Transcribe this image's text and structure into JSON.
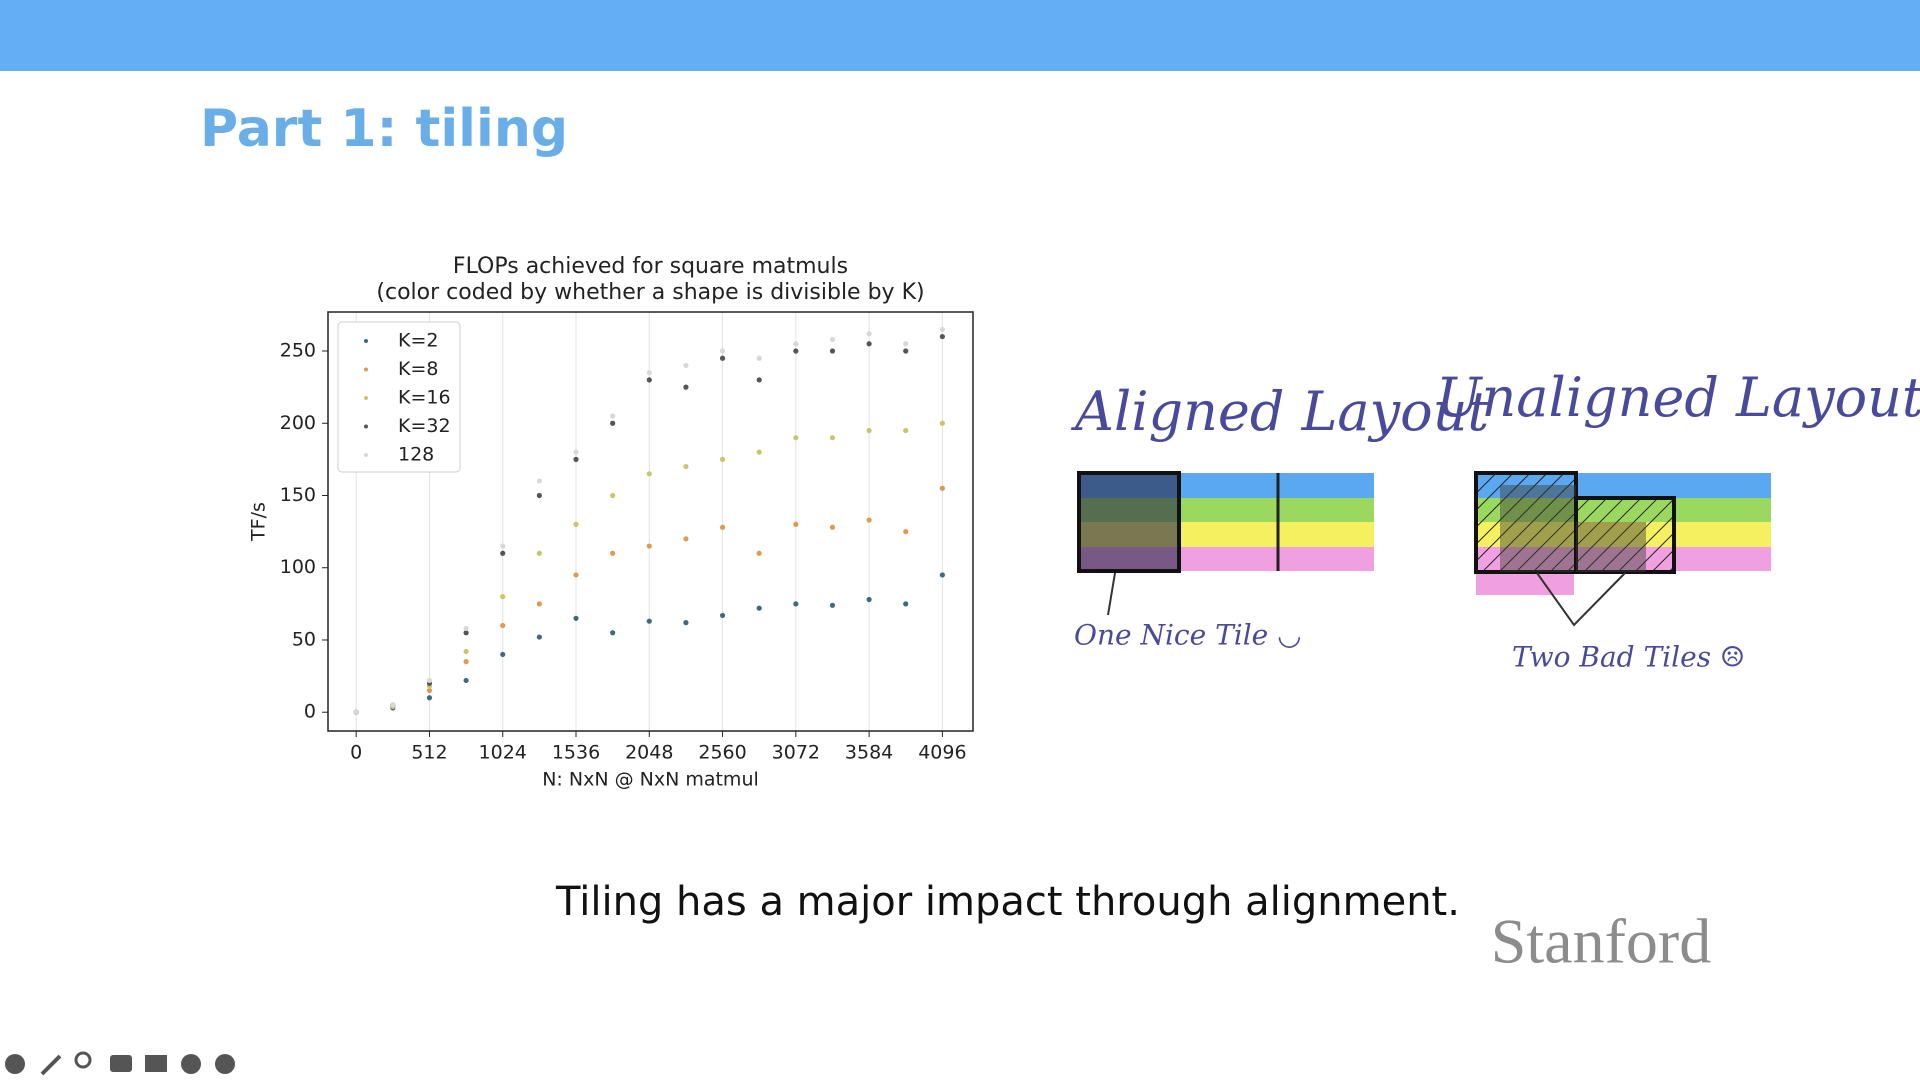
{
  "header": {
    "title": "Part 1: tiling"
  },
  "chart_data": {
    "type": "scatter",
    "title": "FLOPs achieved for square matmuls",
    "subtitle": "(color coded by whether a shape is divisible by K)",
    "x_label": "N: NxN @ NxN matmul",
    "y_label": "TF/s",
    "xlim": [
      -197,
      4310
    ],
    "ylim": [
      -13,
      277
    ],
    "xticks": [
      0,
      512,
      1024,
      1536,
      2048,
      2560,
      3072,
      3584,
      4096
    ],
    "yticks": [
      0,
      50,
      100,
      150,
      200,
      250
    ],
    "grid": true,
    "legend": "upper left",
    "series": [
      {
        "name": "K=2",
        "color": "#3d6b7e",
        "x": [
          0,
          256,
          512,
          768,
          1024,
          1280,
          1536,
          1792,
          2048,
          2304,
          2560,
          2816,
          3072,
          3328,
          3584,
          3840,
          4096
        ],
        "values": [
          0,
          3,
          10,
          22,
          40,
          52,
          65,
          55,
          63,
          62,
          67,
          72,
          75,
          74,
          78,
          75,
          95
        ]
      },
      {
        "name": "K=8",
        "color": "#e09a4c",
        "x": [
          0,
          256,
          512,
          768,
          1024,
          1280,
          1536,
          1792,
          2048,
          2304,
          2560,
          2816,
          3072,
          3328,
          3584,
          3840,
          4096
        ],
        "values": [
          0,
          4,
          15,
          35,
          60,
          75,
          95,
          110,
          115,
          120,
          128,
          110,
          130,
          128,
          133,
          125,
          155
        ]
      },
      {
        "name": "K=16",
        "color": "#c9c66a",
        "x": [
          0,
          256,
          512,
          768,
          1024,
          1280,
          1536,
          1792,
          2048,
          2304,
          2560,
          2816,
          3072,
          3328,
          3584,
          3840,
          4096
        ],
        "values": [
          0,
          4,
          18,
          42,
          80,
          110,
          130,
          150,
          165,
          170,
          175,
          180,
          190,
          190,
          195,
          195,
          200
        ]
      },
      {
        "name": "K=32",
        "color": "#555555",
        "x": [
          0,
          256,
          512,
          768,
          1024,
          1280,
          1536,
          1792,
          2048,
          2304,
          2560,
          2816,
          3072,
          3328,
          3584,
          3840,
          4096
        ],
        "values": [
          0,
          5,
          20,
          55,
          110,
          150,
          175,
          200,
          230,
          225,
          245,
          230,
          250,
          250,
          255,
          250,
          260
        ]
      },
      {
        "name": "128",
        "color": "#d8d8d8",
        "x": [
          0,
          256,
          512,
          768,
          1024,
          1280,
          1536,
          1792,
          2048,
          2304,
          2560,
          2816,
          3072,
          3328,
          3584,
          3840,
          4096
        ],
        "values": [
          0,
          5,
          22,
          58,
          115,
          160,
          180,
          205,
          235,
          240,
          250,
          245,
          255,
          258,
          262,
          255,
          265
        ]
      }
    ]
  },
  "diagram": {
    "aligned": {
      "title": "Aligned Layout",
      "note": "One Nice Tile ◡"
    },
    "unaligned": {
      "title": "Unaligned Layout",
      "note": "Two Bad Tiles ☹"
    }
  },
  "caption": "Tiling has a major impact through alignment.",
  "logo": "Stanford"
}
